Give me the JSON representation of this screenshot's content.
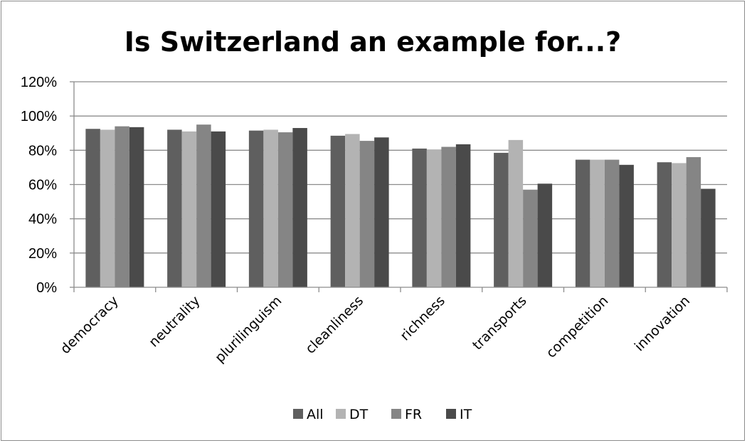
{
  "chart_data": {
    "type": "bar",
    "title": "Is Switzerland an example for...?",
    "xlabel": "",
    "ylabel": "",
    "ylim": [
      0,
      120
    ],
    "yticks": [
      "0%",
      "20%",
      "40%",
      "60%",
      "80%",
      "100%",
      "120%"
    ],
    "grid": true,
    "legend_position": "bottom",
    "categories": [
      "democracy",
      "neutrality",
      "plurilinguism",
      "cleanliness",
      "richness",
      "transports",
      "competition",
      "innovation"
    ],
    "series": [
      {
        "name": "All",
        "color": "#5f5f5f",
        "values": [
          92.5,
          92,
          91.5,
          88.5,
          81,
          78.5,
          74.5,
          73
        ]
      },
      {
        "name": "DT",
        "color": "#b3b3b3",
        "values": [
          92,
          91,
          92,
          89.5,
          80.5,
          86,
          74.5,
          72.5
        ]
      },
      {
        "name": "FR",
        "color": "#858585",
        "values": [
          94,
          95,
          90.5,
          85.5,
          82,
          57,
          74.5,
          76
        ]
      },
      {
        "name": "IT",
        "color": "#4a4a4a",
        "values": [
          93.5,
          91,
          93,
          87.5,
          83.5,
          60.5,
          71.5,
          57.5
        ]
      }
    ]
  }
}
